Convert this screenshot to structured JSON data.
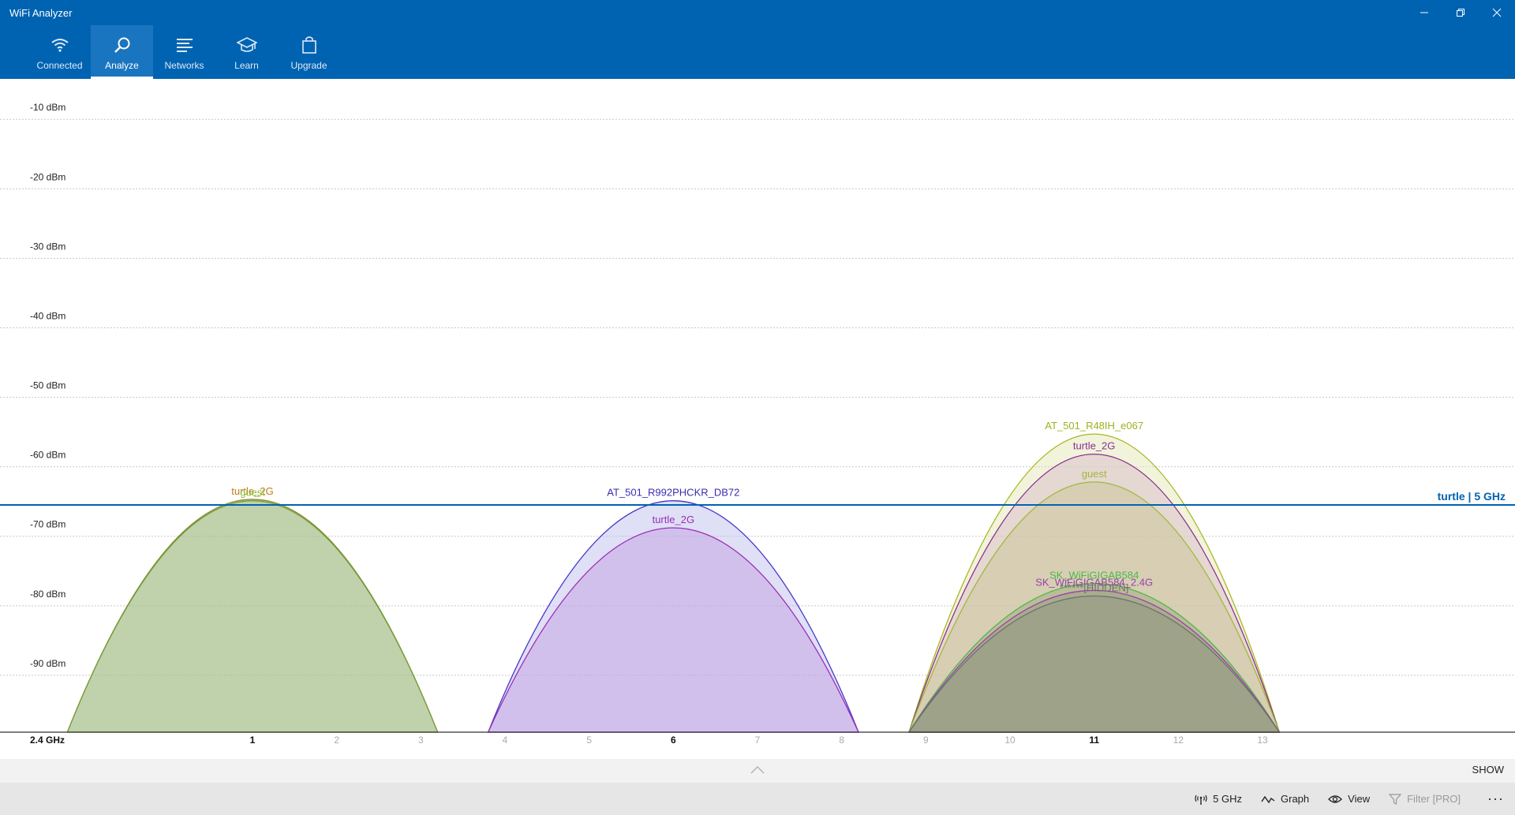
{
  "window": {
    "title": "WiFi Analyzer",
    "minimize_icon": "minimize-icon",
    "maximize_icon": "restore-icon",
    "close_icon": "close-icon"
  },
  "nav": {
    "items": [
      {
        "label": "Connected",
        "icon": "wifi-icon",
        "active": false
      },
      {
        "label": "Analyze",
        "icon": "magnifier-icon",
        "active": true
      },
      {
        "label": "Networks",
        "icon": "list-icon",
        "active": false
      },
      {
        "label": "Learn",
        "icon": "graduation-cap-icon",
        "active": false
      },
      {
        "label": "Upgrade",
        "icon": "shopping-bag-icon",
        "active": false
      }
    ]
  },
  "chart_data": {
    "type": "area",
    "band_label": "2.4 GHz",
    "y_unit": "dBm",
    "y_ticks": [
      "-10 dBm",
      "-20 dBm",
      "-30 dBm",
      "-40 dBm",
      "-50 dBm",
      "-60 dBm",
      "-70 dBm",
      "-80 dBm",
      "-90 dBm"
    ],
    "ylim": [
      -100,
      -6
    ],
    "xlim": [
      -2.0,
      16.0
    ],
    "x_ticks": [
      {
        "label": "1",
        "channel": 1,
        "bold": true
      },
      {
        "label": "2",
        "channel": 2,
        "bold": false
      },
      {
        "label": "3",
        "channel": 3,
        "bold": false
      },
      {
        "label": "4",
        "channel": 4,
        "bold": false
      },
      {
        "label": "5",
        "channel": 5,
        "bold": false
      },
      {
        "label": "6",
        "channel": 6,
        "bold": true
      },
      {
        "label": "7",
        "channel": 7,
        "bold": false
      },
      {
        "label": "8",
        "channel": 8,
        "bold": false
      },
      {
        "label": "9",
        "channel": 9,
        "bold": false
      },
      {
        "label": "10",
        "channel": 10,
        "bold": false
      },
      {
        "label": "11",
        "channel": 11,
        "bold": true
      },
      {
        "label": "12",
        "channel": 12,
        "bold": false
      },
      {
        "label": "13",
        "channel": 13,
        "bold": false
      }
    ],
    "grid": "horizontal-dotted",
    "reference_line": {
      "label": "turtle | 5 GHz",
      "dbm": -67.3,
      "color": "#0063b1"
    },
    "networks": [
      {
        "name": "turtle_2G",
        "channel": 1,
        "dbm": -66.5,
        "stroke": "#7a8c2e",
        "fill": "#9cb97a",
        "label_color": "#c57b1a"
      },
      {
        "name": "guest",
        "channel": 1,
        "dbm": -66.7,
        "stroke": "#7a9c3a",
        "fill": "#a8c490",
        "label_color": "#8fbf3a"
      },
      {
        "name": "AT_501_R992PHCKR_DB72",
        "channel": 6,
        "dbm": -66.7,
        "stroke": "#4636c8",
        "fill": "#b8b8ec",
        "label_color": "#3a2cb0"
      },
      {
        "name": "turtle_2G",
        "channel": 6,
        "dbm": -70.6,
        "stroke": "#9a30b4",
        "fill": "#c49be0",
        "label_color": "#9a30b4"
      },
      {
        "name": "AT_501_R48IH_e067",
        "channel": 11,
        "dbm": -57.1,
        "stroke": "#a8b820",
        "fill": "#e2e4b0",
        "label_color": "#a0b020"
      },
      {
        "name": "turtle_2G",
        "channel": 11,
        "dbm": -60.0,
        "stroke": "#8a3090",
        "fill": "#d4b8c8",
        "label_color": "#8a3090"
      },
      {
        "name": "guest",
        "channel": 11,
        "dbm": -64.0,
        "stroke": "#a0b838",
        "fill": "#c6c490",
        "label_color": "#a0b838"
      },
      {
        "name": "SK_WiFiGIGAB584",
        "channel": 11,
        "dbm": -78.6,
        "stroke": "#4cb848",
        "fill": "#9aa878",
        "label_color": "#4cb848"
      },
      {
        "name": "SK_WiFiGIGAB584_2.4G",
        "channel": 11,
        "dbm": -79.6,
        "stroke": "#9a40a8",
        "fill": "#949a80",
        "label_color": "#9a40a8"
      },
      {
        "name": "******[HIDDEN]",
        "channel": 11,
        "dbm": -80.4,
        "stroke": "#707070",
        "fill": "#8e9480",
        "label_color": "#707070"
      }
    ]
  },
  "expand": {
    "show_label": "SHOW",
    "chevron_icon": "chevron-up-icon"
  },
  "commandbar": {
    "band_label": "5 GHz",
    "band_icon": "antenna-icon",
    "graph_label": "Graph",
    "graph_icon": "wave-icon",
    "view_label": "View",
    "view_icon": "eye-icon",
    "filter_label": "Filter [PRO]",
    "filter_icon": "filter-icon",
    "more_label": "···",
    "more_icon": "more-icon"
  }
}
